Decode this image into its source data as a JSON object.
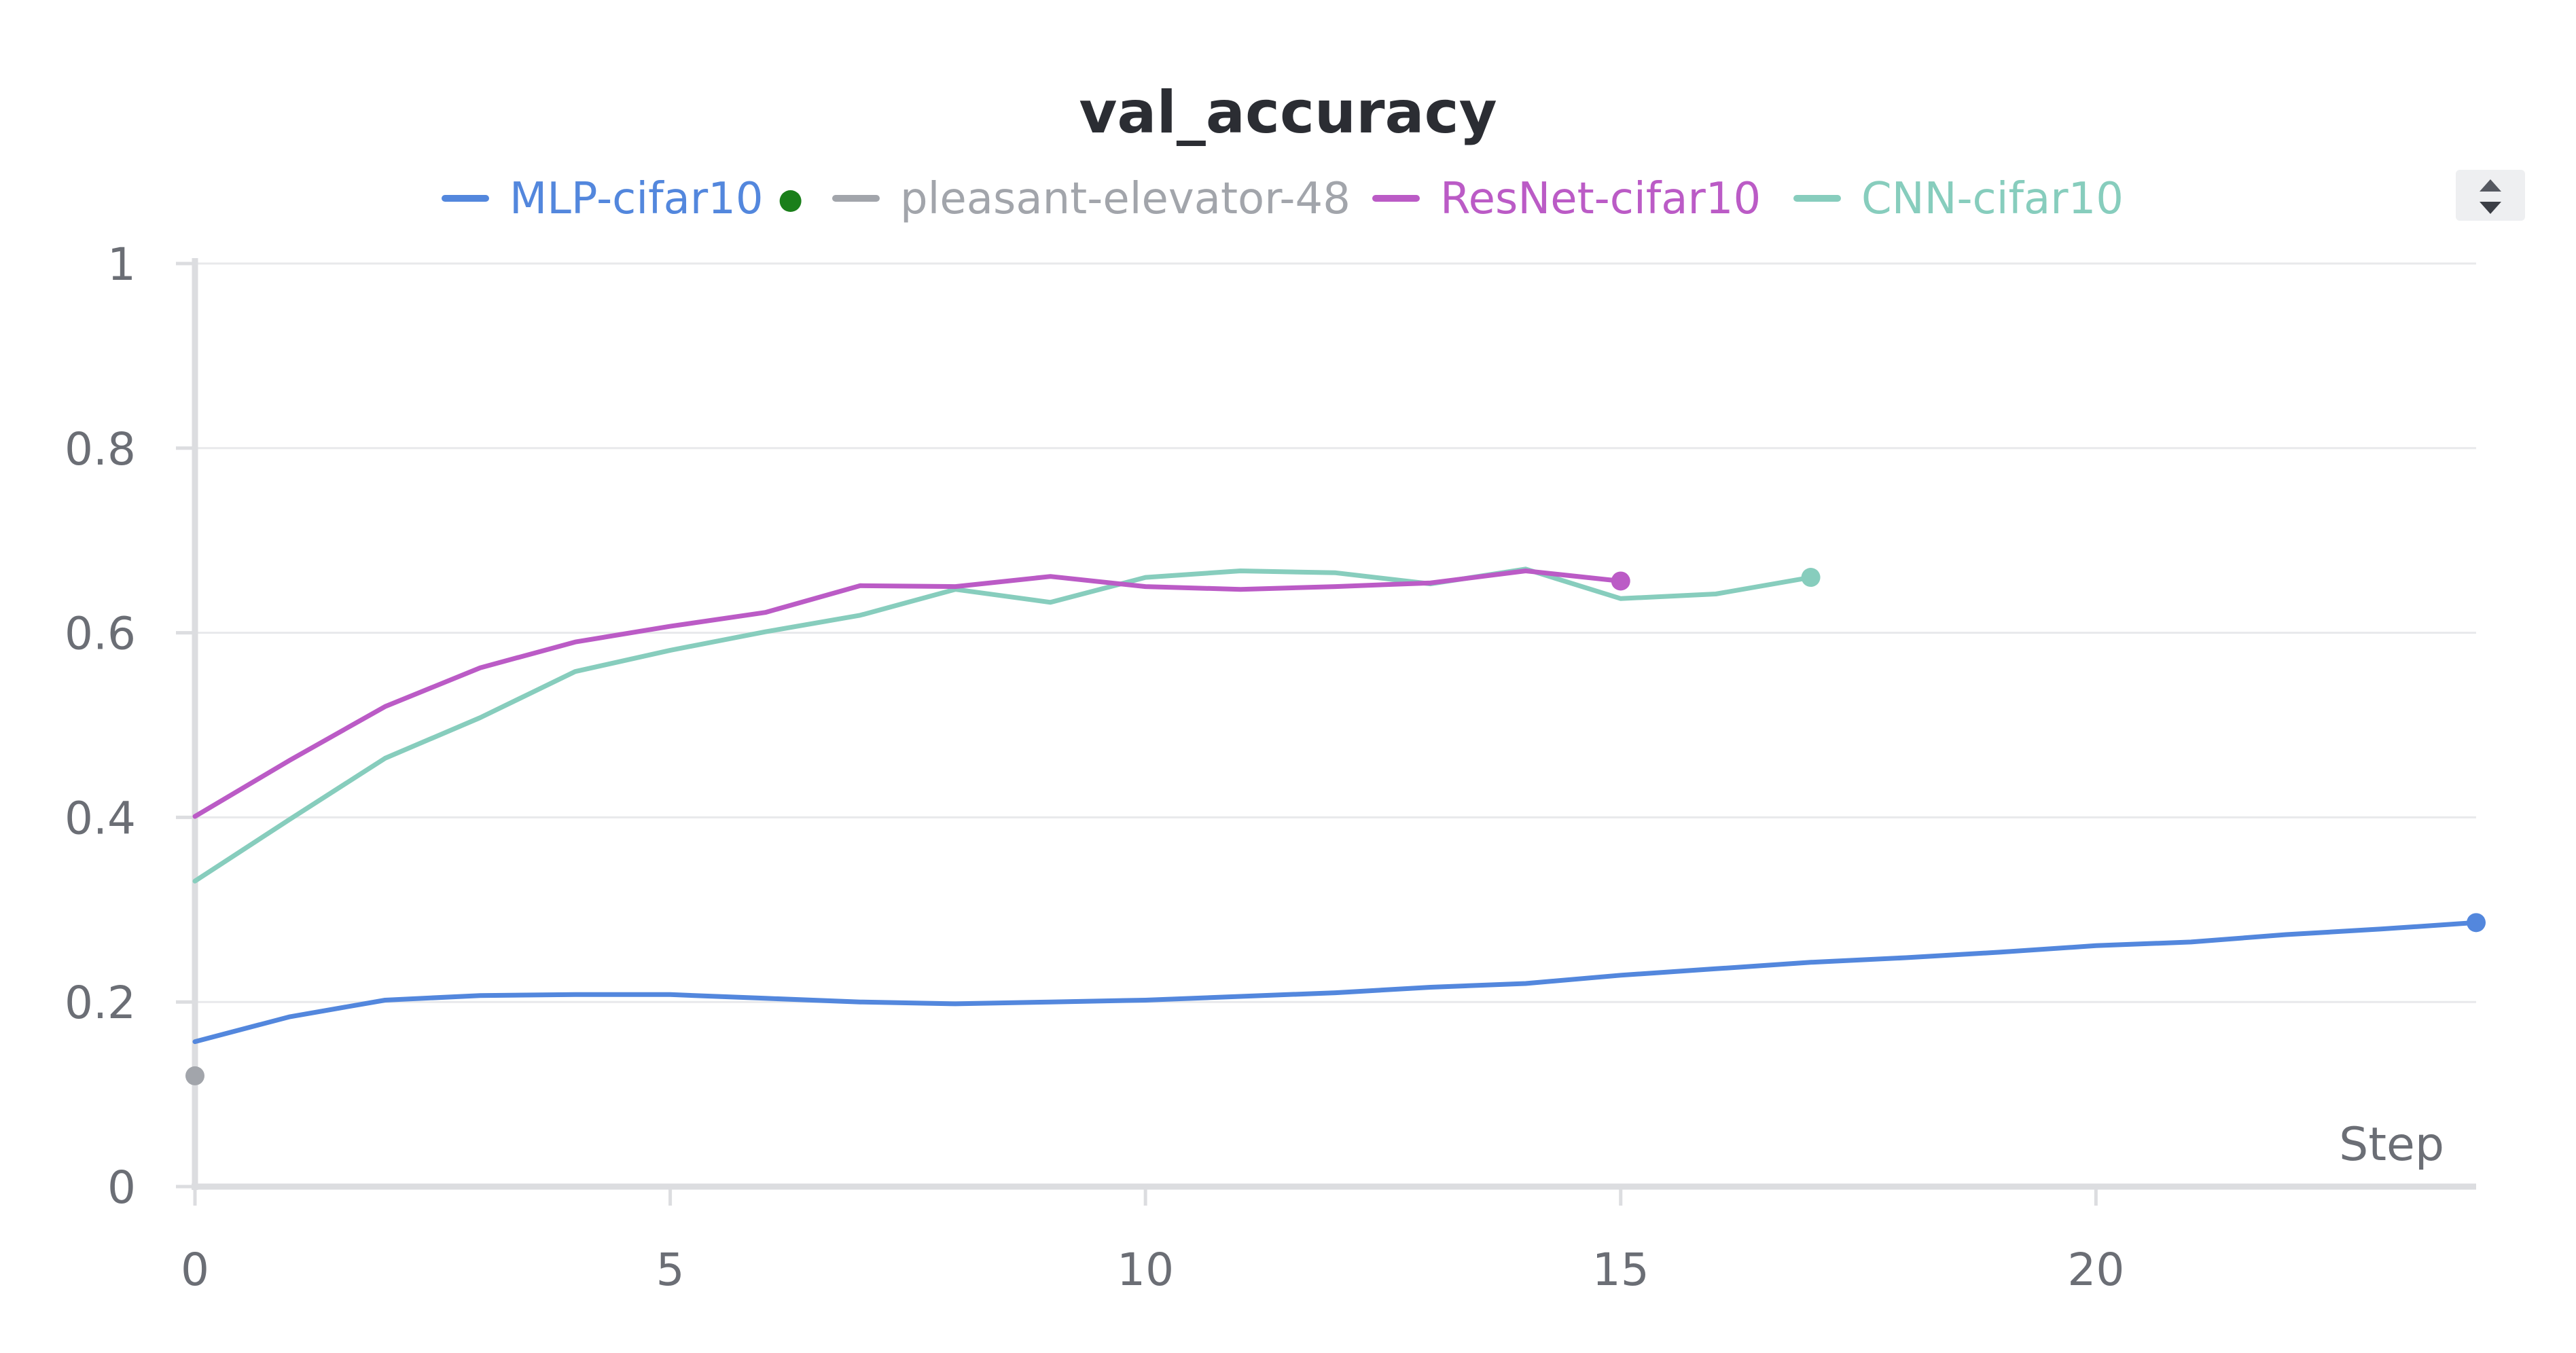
{
  "colors": {
    "mlp": "#5387dd",
    "pleasant": "#a2a5ab",
    "resnet": "#bb5bc6",
    "cnn": "#87cdbd",
    "running_dot": "#1a7f1a",
    "text": "#2b2d33",
    "axis_text": "#6b6e75"
  },
  "chart_data": {
    "type": "line",
    "title": "val_accuracy",
    "xlabel": "Step",
    "ylabel": "",
    "xlim": [
      0,
      24
    ],
    "ylim": [
      0,
      1
    ],
    "x_ticks": [
      0,
      5,
      10,
      15,
      20
    ],
    "y_ticks": [
      0,
      0.2,
      0.4,
      0.6,
      0.8,
      1
    ],
    "y_tick_labels": [
      "0",
      "0.2",
      "0.4",
      "0.6",
      "0.8",
      "1"
    ],
    "grid": true,
    "legend_position": "top",
    "series": [
      {
        "name": "MLP-cifar10",
        "color_key": "mlp",
        "running": true,
        "x": [
          0,
          1,
          2,
          3,
          4,
          5,
          6,
          7,
          8,
          9,
          10,
          11,
          12,
          13,
          14,
          15,
          16,
          17,
          18,
          19,
          20,
          21,
          22,
          23,
          24
        ],
        "y": [
          0.157,
          0.184,
          0.202,
          0.207,
          0.208,
          0.208,
          0.204,
          0.2,
          0.198,
          0.2,
          0.202,
          0.206,
          0.21,
          0.216,
          0.22,
          0.229,
          0.236,
          0.243,
          0.248,
          0.254,
          0.261,
          0.265,
          0.273,
          0.279,
          0.286
        ]
      },
      {
        "name": "pleasant-elevator-48",
        "color_key": "pleasant",
        "running": false,
        "x": [
          0
        ],
        "y": [
          0.12
        ]
      },
      {
        "name": "ResNet-cifar10",
        "color_key": "resnet",
        "running": false,
        "x": [
          0,
          1,
          2,
          3,
          4,
          5,
          6,
          7,
          8,
          9,
          10,
          11,
          12,
          13,
          14,
          15
        ],
        "y": [
          0.401,
          0.462,
          0.52,
          0.562,
          0.59,
          0.607,
          0.622,
          0.651,
          0.65,
          0.661,
          0.65,
          0.647,
          0.65,
          0.654,
          0.667,
          0.656
        ]
      },
      {
        "name": "CNN-cifar10",
        "color_key": "cnn",
        "running": false,
        "x": [
          0,
          1,
          2,
          3,
          4,
          5,
          6,
          7,
          8,
          9,
          10,
          11,
          12,
          13,
          14,
          15,
          16,
          17
        ],
        "y": [
          0.331,
          0.398,
          0.464,
          0.508,
          0.558,
          0.581,
          0.601,
          0.619,
          0.647,
          0.633,
          0.66,
          0.667,
          0.665,
          0.653,
          0.669,
          0.637,
          0.642,
          0.66
        ]
      }
    ]
  }
}
